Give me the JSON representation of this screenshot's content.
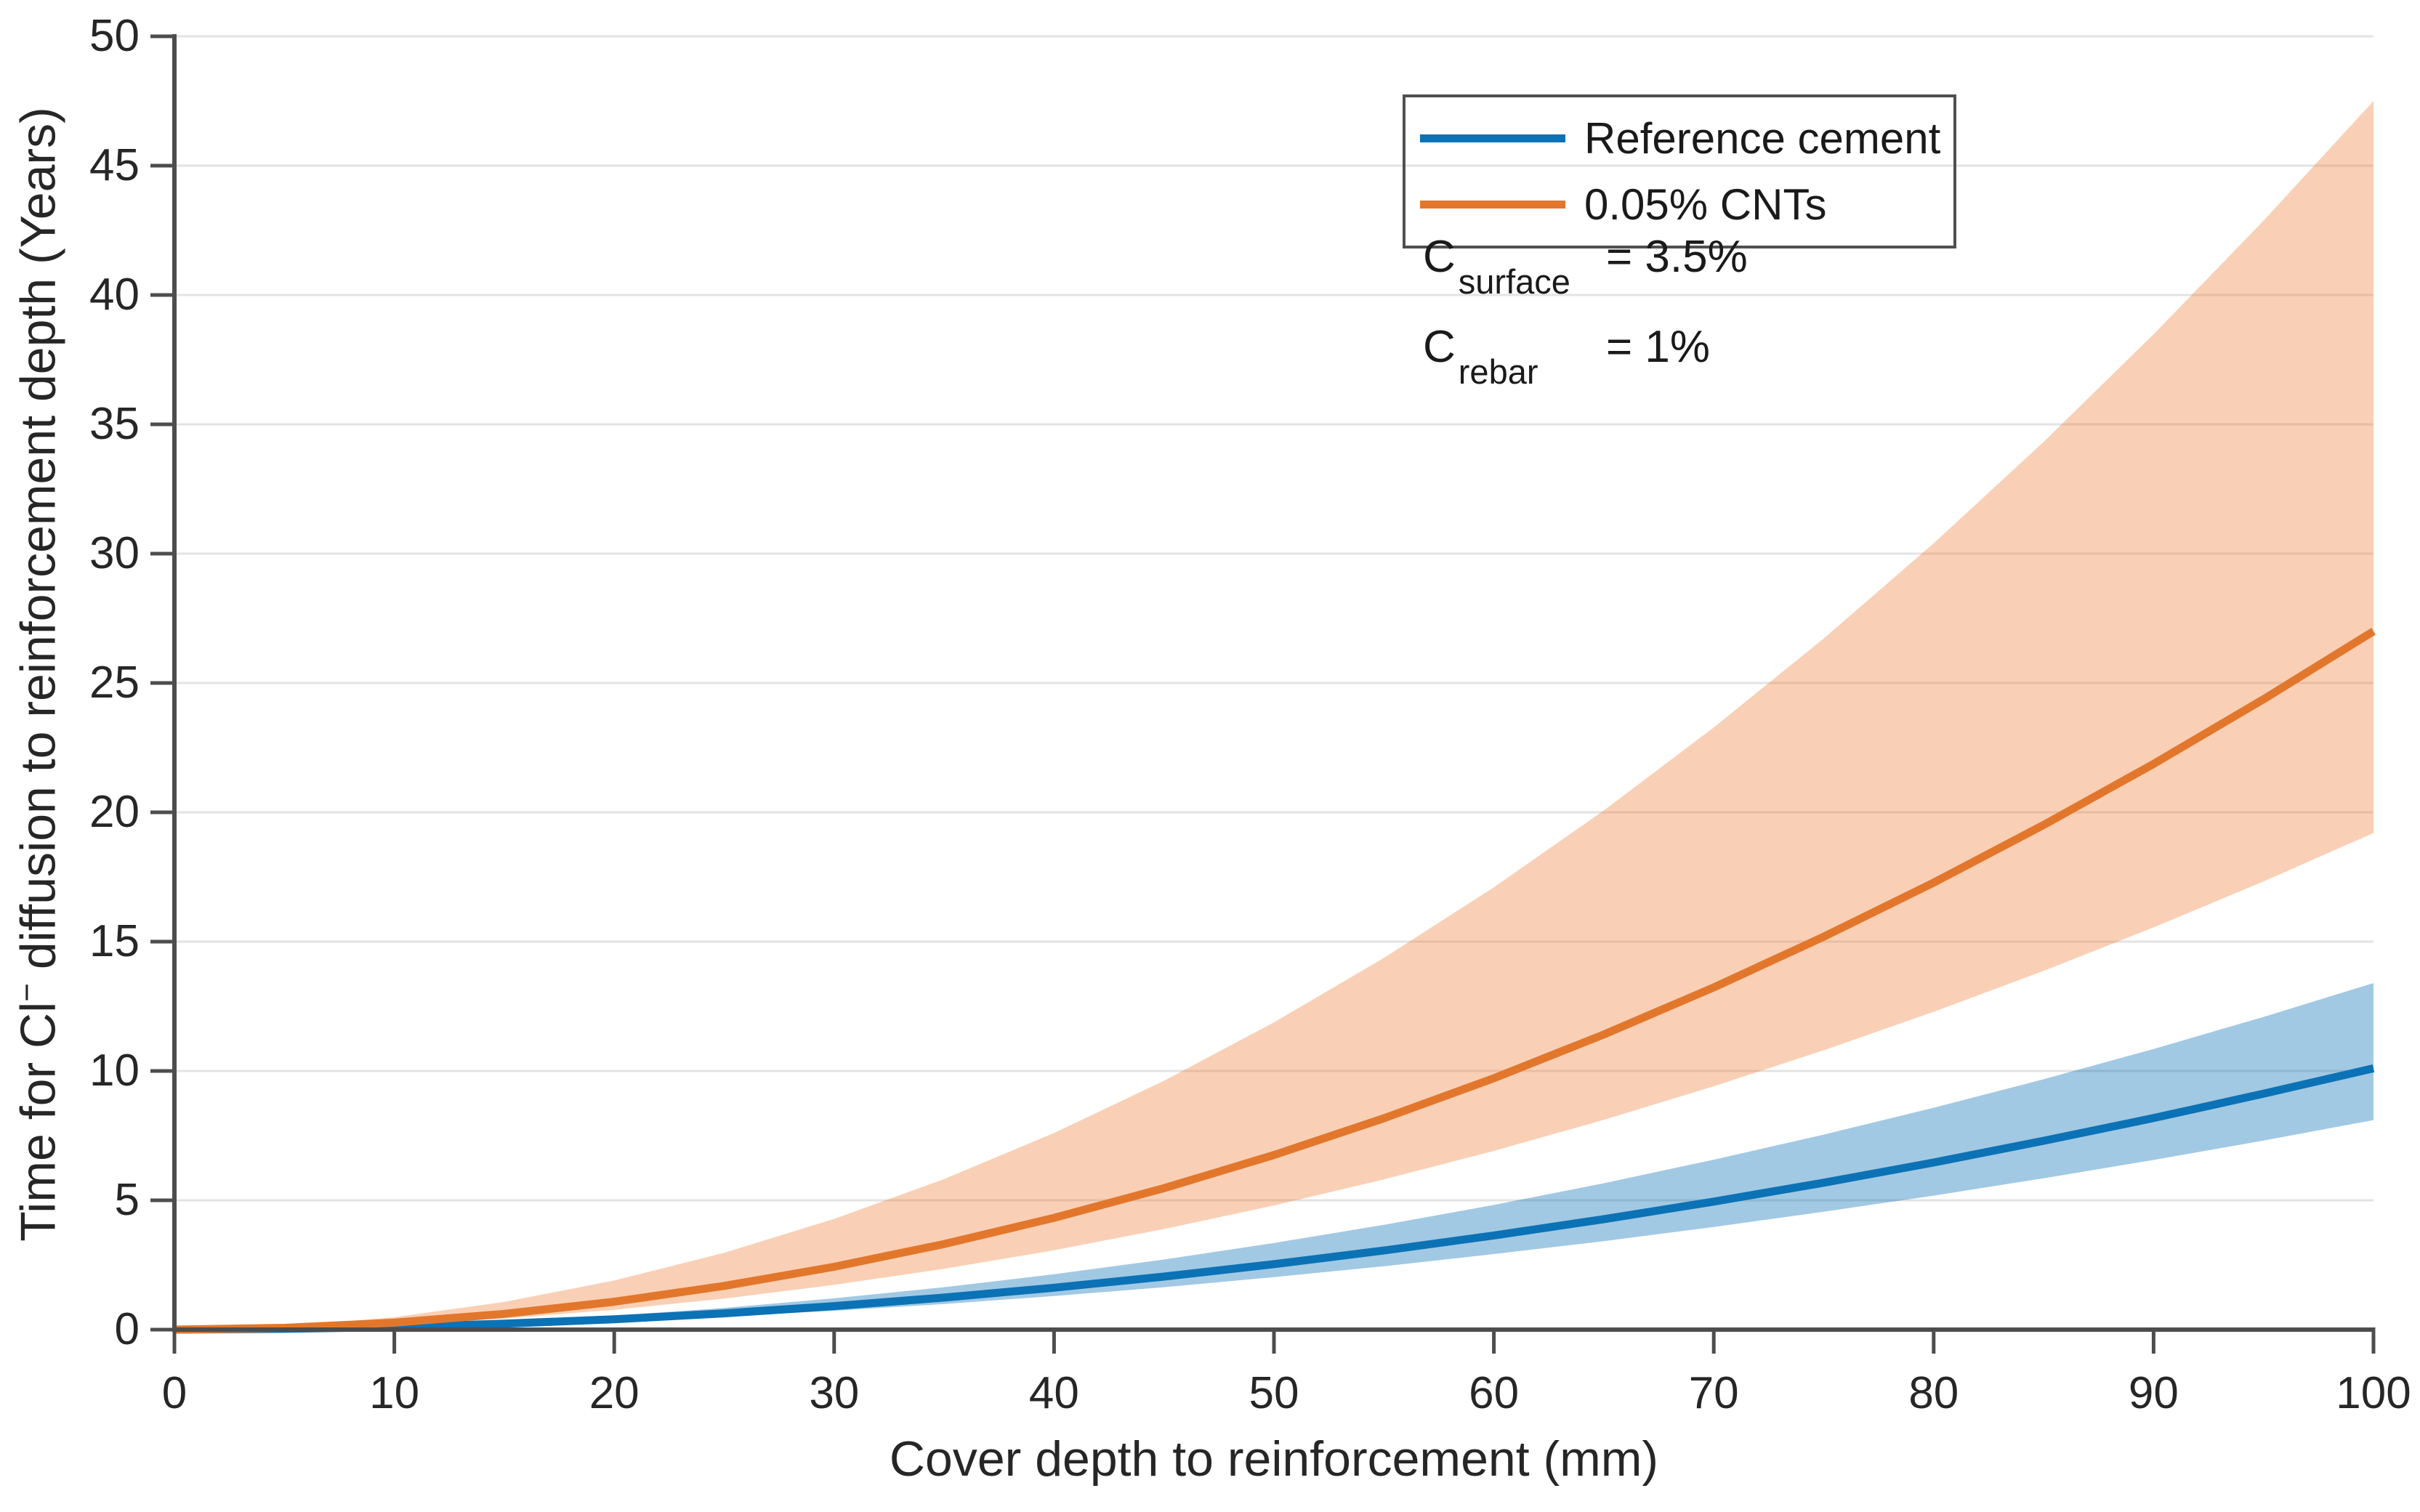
{
  "figure": {
    "background": "#ffffff",
    "xlabel": "Cover depth to reinforcement (mm)",
    "ylabel_pre": "Time for Cl",
    "ylabel_sup": "−",
    "ylabel_post": " diffusion to reinforcement depth (Years)",
    "annotations": [
      {
        "symbol": "C",
        "subscript": "surface",
        "value": "= 3.5%"
      },
      {
        "symbol": "C",
        "subscript": "rebar",
        "value": "= 1%"
      }
    ]
  },
  "chart_data": {
    "type": "line",
    "title": "",
    "xlabel": "Cover depth to reinforcement (mm)",
    "ylabel": "Time for Cl⁻ diffusion to reinforcement depth (Years)",
    "xlim": [
      0,
      100
    ],
    "ylim": [
      0,
      50
    ],
    "xticks": [
      0,
      10,
      20,
      30,
      40,
      50,
      60,
      70,
      80,
      90,
      100
    ],
    "xtick_labels": [
      "0",
      "10",
      "20",
      "30",
      "40",
      "50",
      "60",
      "70",
      "80",
      "90",
      "100"
    ],
    "yticks": [
      0,
      5,
      10,
      15,
      20,
      25,
      30,
      35,
      40,
      45,
      50
    ],
    "ytick_labels": [
      "0",
      "5",
      "10",
      "15",
      "20",
      "25",
      "30",
      "35",
      "40",
      "45",
      "50"
    ],
    "grid": "horizontal-only",
    "gridline_color": "#e3e3e3",
    "axis_color": "#4d4d4d",
    "tick_direction": "out",
    "legend_position": "top-right",
    "x": [
      0,
      5,
      10,
      15,
      20,
      25,
      30,
      35,
      40,
      45,
      50,
      55,
      60,
      65,
      70,
      75,
      80,
      85,
      90,
      95,
      100
    ],
    "series": [
      {
        "name": "Reference cement",
        "color": "#0b72b5",
        "band_color": "#0b72b5",
        "band_opacity": 0.38,
        "values": [
          0,
          0.03,
          0.1,
          0.23,
          0.4,
          0.63,
          0.91,
          1.24,
          1.62,
          2.05,
          2.53,
          3.06,
          3.64,
          4.27,
          4.95,
          5.68,
          6.46,
          7.3,
          8.18,
          9.12,
          10.1
        ],
        "band_upper": [
          0,
          0.03,
          0.13,
          0.3,
          0.54,
          0.84,
          1.21,
          1.64,
          2.14,
          2.71,
          3.35,
          4.05,
          4.82,
          5.66,
          6.57,
          7.54,
          8.58,
          9.68,
          10.85,
          12.09,
          13.4
        ],
        "band_lower": [
          0,
          0.02,
          0.08,
          0.18,
          0.32,
          0.51,
          0.73,
          0.99,
          1.3,
          1.64,
          2.03,
          2.45,
          2.92,
          3.42,
          3.97,
          4.56,
          5.18,
          5.85,
          6.56,
          7.31,
          8.1
        ]
      },
      {
        "name": "0.05% CNTs",
        "color": "#e2772c",
        "band_color": "#ed7d31",
        "band_opacity": 0.36,
        "values": [
          0,
          0.07,
          0.27,
          0.61,
          1.08,
          1.69,
          2.43,
          3.31,
          4.32,
          5.47,
          6.75,
          8.17,
          9.72,
          11.41,
          13.23,
          15.19,
          17.28,
          19.51,
          21.87,
          24.37,
          27.0
        ],
        "band_upper": [
          0,
          0.12,
          0.48,
          1.07,
          1.9,
          2.97,
          4.28,
          5.82,
          7.6,
          9.62,
          11.88,
          14.37,
          17.1,
          20.07,
          23.28,
          26.72,
          30.4,
          34.32,
          38.48,
          42.87,
          47.5
        ],
        "band_lower": [
          0,
          0.05,
          0.19,
          0.43,
          0.77,
          1.2,
          1.73,
          2.35,
          3.07,
          3.89,
          4.8,
          5.81,
          6.91,
          8.11,
          9.41,
          10.8,
          12.29,
          13.87,
          15.55,
          17.33,
          19.2
        ]
      }
    ],
    "annotations": [
      "C_surface = 3.5%",
      "C_rebar = 1%"
    ]
  }
}
